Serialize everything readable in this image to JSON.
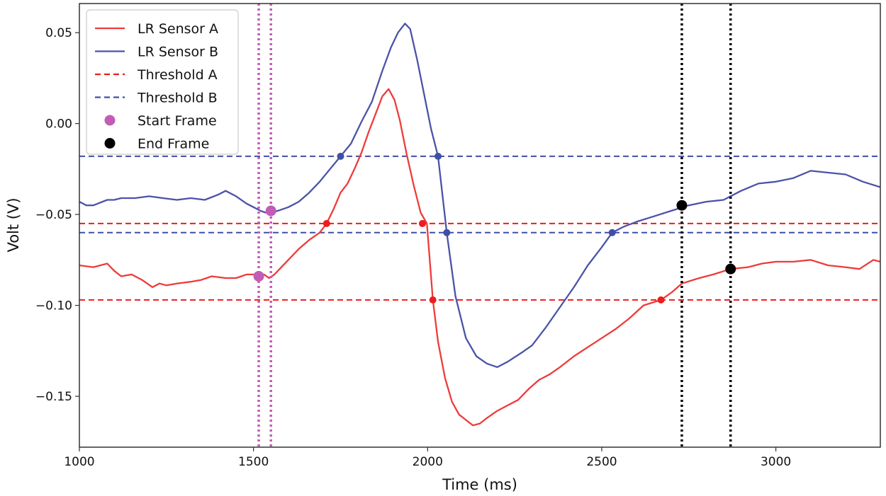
{
  "chart_data": {
    "type": "line",
    "title": "",
    "xlabel": "Time (ms)",
    "ylabel": "Volt (V)",
    "xlim": [
      1000,
      3300
    ],
    "ylim": [
      -0.178,
      0.066
    ],
    "xticks": [
      1000,
      1500,
      2000,
      2500,
      3000
    ],
    "xtick_labels": [
      "1000",
      "1500",
      "2000",
      "2500",
      "3000"
    ],
    "yticks": [
      0.05,
      0.0,
      -0.05,
      -0.1,
      -0.15
    ],
    "ytick_labels": [
      "0.05",
      "0.00",
      "−0.05",
      "−0.10",
      "−0.15"
    ],
    "grid": false,
    "legend_position": "top-left",
    "colors": {
      "sensor_a": "#ee3b3b",
      "sensor_b": "#4b53a8",
      "threshold_a": "#ee1c1c",
      "threshold_b": "#3f4fa6",
      "start_frame": "#c25cb5",
      "end_frame": "#000000"
    },
    "series": [
      {
        "name": "LR Sensor A",
        "style": "solid",
        "color": "#ee3b3b",
        "x": [
          1000,
          1040,
          1080,
          1100,
          1120,
          1150,
          1180,
          1210,
          1230,
          1250,
          1280,
          1320,
          1350,
          1380,
          1420,
          1450,
          1480,
          1500,
          1515,
          1530,
          1545,
          1560,
          1580,
          1600,
          1630,
          1660,
          1690,
          1710,
          1730,
          1750,
          1770,
          1790,
          1810,
          1830,
          1850,
          1870,
          1888,
          1905,
          1920,
          1940,
          1960,
          1980,
          1998,
          2015,
          2030,
          2050,
          2070,
          2090,
          2110,
          2130,
          2150,
          2170,
          2200,
          2230,
          2260,
          2290,
          2320,
          2350,
          2380,
          2420,
          2460,
          2500,
          2540,
          2580,
          2620,
          2670,
          2700,
          2730,
          2780,
          2820,
          2870,
          2920,
          2960,
          3000,
          3050,
          3100,
          3150,
          3200,
          3240,
          3280,
          3300
        ],
        "values": [
          -0.078,
          -0.079,
          -0.077,
          -0.081,
          -0.084,
          -0.083,
          -0.086,
          -0.09,
          -0.088,
          -0.089,
          -0.088,
          -0.087,
          -0.086,
          -0.084,
          -0.085,
          -0.085,
          -0.083,
          -0.083,
          -0.084,
          -0.083,
          -0.085,
          -0.083,
          -0.079,
          -0.075,
          -0.069,
          -0.064,
          -0.06,
          -0.055,
          -0.047,
          -0.038,
          -0.033,
          -0.025,
          -0.016,
          -0.005,
          0.005,
          0.015,
          0.019,
          0.013,
          0.002,
          -0.017,
          -0.034,
          -0.049,
          -0.055,
          -0.097,
          -0.12,
          -0.14,
          -0.153,
          -0.16,
          -0.163,
          -0.166,
          -0.165,
          -0.162,
          -0.158,
          -0.155,
          -0.152,
          -0.146,
          -0.141,
          -0.138,
          -0.134,
          -0.128,
          -0.123,
          -0.118,
          -0.113,
          -0.107,
          -0.1,
          -0.097,
          -0.093,
          -0.088,
          -0.085,
          -0.083,
          -0.08,
          -0.079,
          -0.077,
          -0.076,
          -0.076,
          -0.075,
          -0.078,
          -0.079,
          -0.08,
          -0.075,
          -0.076
        ]
      },
      {
        "name": "LR Sensor B",
        "style": "solid",
        "color": "#4b53a8",
        "x": [
          1000,
          1020,
          1040,
          1080,
          1100,
          1120,
          1160,
          1200,
          1240,
          1280,
          1320,
          1360,
          1400,
          1420,
          1450,
          1480,
          1500,
          1520,
          1535,
          1550,
          1570,
          1600,
          1630,
          1660,
          1690,
          1720,
          1750,
          1780,
          1810,
          1840,
          1870,
          1895,
          1915,
          1935,
          1950,
          1970,
          1990,
          2010,
          2030,
          2055,
          2080,
          2110,
          2140,
          2170,
          2200,
          2230,
          2270,
          2300,
          2340,
          2380,
          2420,
          2460,
          2500,
          2530,
          2560,
          2600,
          2650,
          2700,
          2750,
          2800,
          2850,
          2900,
          2950,
          3000,
          3050,
          3100,
          3150,
          3200,
          3250,
          3300
        ],
        "values": [
          -0.043,
          -0.045,
          -0.045,
          -0.042,
          -0.042,
          -0.041,
          -0.041,
          -0.04,
          -0.041,
          -0.042,
          -0.041,
          -0.042,
          -0.039,
          -0.037,
          -0.04,
          -0.044,
          -0.046,
          -0.048,
          -0.049,
          -0.049,
          -0.048,
          -0.046,
          -0.043,
          -0.038,
          -0.032,
          -0.025,
          -0.018,
          -0.011,
          0.001,
          0.012,
          0.029,
          0.042,
          0.05,
          0.055,
          0.052,
          0.035,
          0.016,
          -0.003,
          -0.018,
          -0.06,
          -0.095,
          -0.118,
          -0.128,
          -0.132,
          -0.134,
          -0.131,
          -0.126,
          -0.122,
          -0.112,
          -0.101,
          -0.09,
          -0.078,
          -0.068,
          -0.06,
          -0.057,
          -0.054,
          -0.051,
          -0.048,
          -0.045,
          -0.043,
          -0.042,
          -0.037,
          -0.033,
          -0.032,
          -0.03,
          -0.026,
          -0.027,
          -0.028,
          -0.032,
          -0.035
        ]
      },
      {
        "name": "Threshold A",
        "style": "dashed",
        "color": "#ee1c1c",
        "levels": [
          -0.055,
          -0.097
        ]
      },
      {
        "name": "Threshold B",
        "style": "dashed",
        "color": "#3f4fa6",
        "levels": [
          -0.018,
          -0.06
        ]
      }
    ],
    "crossing_points": [
      {
        "series": "LR Sensor A",
        "color": "#ee1c1c",
        "x": 1710,
        "y": -0.055
      },
      {
        "series": "LR Sensor A",
        "color": "#ee1c1c",
        "x": 1985,
        "y": -0.055
      },
      {
        "series": "LR Sensor A",
        "color": "#ee1c1c",
        "x": 2015,
        "y": -0.097
      },
      {
        "series": "LR Sensor A",
        "color": "#ee1c1c",
        "x": 2670,
        "y": -0.097
      },
      {
        "series": "LR Sensor B",
        "color": "#3f4fa6",
        "x": 1750,
        "y": -0.018
      },
      {
        "series": "LR Sensor B",
        "color": "#3f4fa6",
        "x": 2030,
        "y": -0.018
      },
      {
        "series": "LR Sensor B",
        "color": "#3f4fa6",
        "x": 2055,
        "y": -0.06
      },
      {
        "series": "LR Sensor B",
        "color": "#3f4fa6",
        "x": 2530,
        "y": -0.06
      }
    ],
    "start_frame": {
      "name": "Start Frame",
      "color": "#c25cb5",
      "lines_x": [
        1515,
        1550
      ],
      "points": [
        {
          "x": 1515,
          "y": -0.084
        },
        {
          "x": 1550,
          "y": -0.048
        }
      ]
    },
    "end_frame": {
      "name": "End Frame",
      "color": "#000000",
      "lines_x": [
        2730,
        2870
      ],
      "points": [
        {
          "x": 2730,
          "y": -0.045
        },
        {
          "x": 2870,
          "y": -0.08
        }
      ]
    },
    "legend": [
      "LR Sensor A",
      "LR Sensor B",
      "Threshold A",
      "Threshold B",
      "Start Frame",
      "End Frame"
    ]
  }
}
